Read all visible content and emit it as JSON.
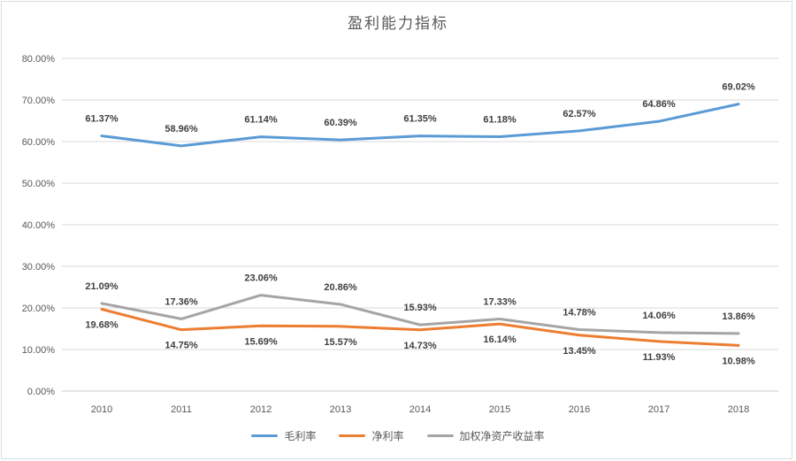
{
  "chart_data": {
    "type": "line",
    "title": "盈利能力指标",
    "categories": [
      "2010",
      "2011",
      "2012",
      "2013",
      "2014",
      "2015",
      "2016",
      "2017",
      "2018"
    ],
    "series": [
      {
        "name": "毛利率",
        "color": "#5B9BD5",
        "label_position": "above",
        "values": [
          61.37,
          58.96,
          61.14,
          60.39,
          61.35,
          61.18,
          62.57,
          64.86,
          69.02
        ],
        "labels": [
          "61.37%",
          "58.96%",
          "61.14%",
          "60.39%",
          "61.35%",
          "61.18%",
          "62.57%",
          "64.86%",
          "69.02%"
        ]
      },
      {
        "name": "净利率",
        "color": "#ED7D31",
        "label_position": "below",
        "values": [
          19.68,
          14.75,
          15.69,
          15.57,
          14.73,
          16.14,
          13.45,
          11.93,
          10.98
        ],
        "labels": [
          "19.68%",
          "14.75%",
          "15.69%",
          "15.57%",
          "14.73%",
          "16.14%",
          "13.45%",
          "11.93%",
          "10.98%"
        ]
      },
      {
        "name": "加权净资产收益率",
        "color": "#A5A5A5",
        "label_position": "above",
        "values": [
          21.09,
          17.36,
          23.06,
          20.86,
          15.93,
          17.33,
          14.78,
          14.06,
          13.86
        ],
        "labels": [
          "21.09%",
          "17.36%",
          "23.06%",
          "20.86%",
          "15.93%",
          "17.33%",
          "14.78%",
          "14.06%",
          "13.86%"
        ]
      }
    ],
    "y_axis": {
      "min": 0,
      "max": 80,
      "tick_labels": [
        "0.00%",
        "10.00%",
        "20.00%",
        "30.00%",
        "40.00%",
        "50.00%",
        "60.00%",
        "70.00%",
        "80.00%"
      ]
    },
    "legend": {
      "position": "bottom",
      "entries": [
        "毛利率",
        "净利率",
        "加权净资产收益率"
      ]
    },
    "grid": true,
    "colors": {
      "grid": "#D9D9D9",
      "axis_line": "#C9C9C9",
      "axis_text": "#595959",
      "label_text": "#404040",
      "frame": "#D7DDE3"
    }
  }
}
